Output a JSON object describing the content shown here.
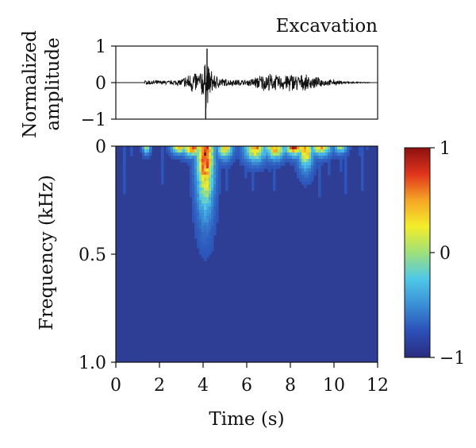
{
  "chart_data": [
    {
      "type": "line",
      "title": "Excavation",
      "ylabel": "Normalized amplitude",
      "ylabel_lines": [
        "Normalized",
        "amplitude"
      ],
      "xlim": [
        0,
        12
      ],
      "ylim": [
        -1,
        1
      ],
      "yticks": [
        "1",
        "0",
        "−1"
      ],
      "ytick_values": [
        1,
        0,
        -1
      ],
      "series": [
        {
          "x": [
            0,
            1.3,
            1.35,
            2.5,
            3.0,
            3.3,
            3.6,
            3.8,
            4.0,
            4.1,
            4.15,
            4.2,
            4.3,
            4.5,
            5.0,
            6.0,
            6.3,
            6.6,
            7.0,
            7.5,
            8.0,
            8.5,
            9.0,
            9.5,
            10.0,
            10.5,
            11.0,
            12.0
          ],
          "envelope": [
            0.0,
            0.0,
            0.08,
            0.06,
            0.12,
            0.26,
            0.38,
            0.3,
            0.5,
            0.62,
            0.92,
            0.65,
            0.45,
            0.25,
            0.12,
            0.08,
            0.16,
            0.24,
            0.28,
            0.22,
            0.3,
            0.24,
            0.2,
            0.12,
            0.08,
            0.05,
            0.02,
            0.0
          ],
          "peak_max": {
            "x": 4.18,
            "y": 0.93
          },
          "peak_min": {
            "x": 4.12,
            "y": -1.0
          }
        }
      ]
    },
    {
      "type": "heatmap",
      "xlabel": "Time (s)",
      "ylabel": "Frequency (kHz)",
      "xlim": [
        0,
        12
      ],
      "ylim": [
        0,
        1.0
      ],
      "xticks": [
        "0",
        "2",
        "4",
        "6",
        "8",
        "10",
        "12"
      ],
      "xtick_values": [
        0,
        2,
        4,
        6,
        8,
        10,
        12
      ],
      "yticks": [
        "0",
        "0.5",
        "1.0"
      ],
      "ytick_values": [
        0,
        0.5,
        1.0
      ],
      "colorbar": {
        "range": [
          -1,
          1
        ],
        "ticks": [
          "1",
          "0",
          "−1"
        ],
        "tick_values": [
          1,
          0,
          -1
        ],
        "colors": [
          "#2a2c7e",
          "#2b4fb8",
          "#3a8fd6",
          "#4fc8e8",
          "#9ee07a",
          "#f4ee2a",
          "#f6a526",
          "#e0341c",
          "#8c1010"
        ]
      },
      "background_value": -0.75,
      "hot_spots": [
        {
          "t": 4.1,
          "f": 0.0,
          "dt": 0.35,
          "df": 0.25,
          "value": 1.0
        },
        {
          "t": 3.5,
          "f": 0.0,
          "dt": 0.4,
          "df": 0.04,
          "value": 0.8
        },
        {
          "t": 2.9,
          "f": 0.0,
          "dt": 0.3,
          "df": 0.03,
          "value": 0.6
        },
        {
          "t": 5.0,
          "f": 0.0,
          "dt": 0.3,
          "df": 0.05,
          "value": 0.5
        },
        {
          "t": 6.4,
          "f": 0.0,
          "dt": 0.45,
          "df": 0.06,
          "value": 0.6
        },
        {
          "t": 7.3,
          "f": 0.0,
          "dt": 0.4,
          "df": 0.05,
          "value": 0.7
        },
        {
          "t": 8.2,
          "f": 0.0,
          "dt": 0.4,
          "df": 0.04,
          "value": 0.9
        },
        {
          "t": 8.7,
          "f": 0.0,
          "dt": 0.3,
          "df": 0.09,
          "value": 0.6
        },
        {
          "t": 9.4,
          "f": 0.0,
          "dt": 0.4,
          "df": 0.04,
          "value": 0.5
        },
        {
          "t": 1.4,
          "f": 0.0,
          "dt": 0.15,
          "df": 0.03,
          "value": 0.2
        },
        {
          "t": 10.3,
          "f": 0.0,
          "dt": 0.25,
          "df": 0.03,
          "value": 0.1
        }
      ]
    }
  ]
}
